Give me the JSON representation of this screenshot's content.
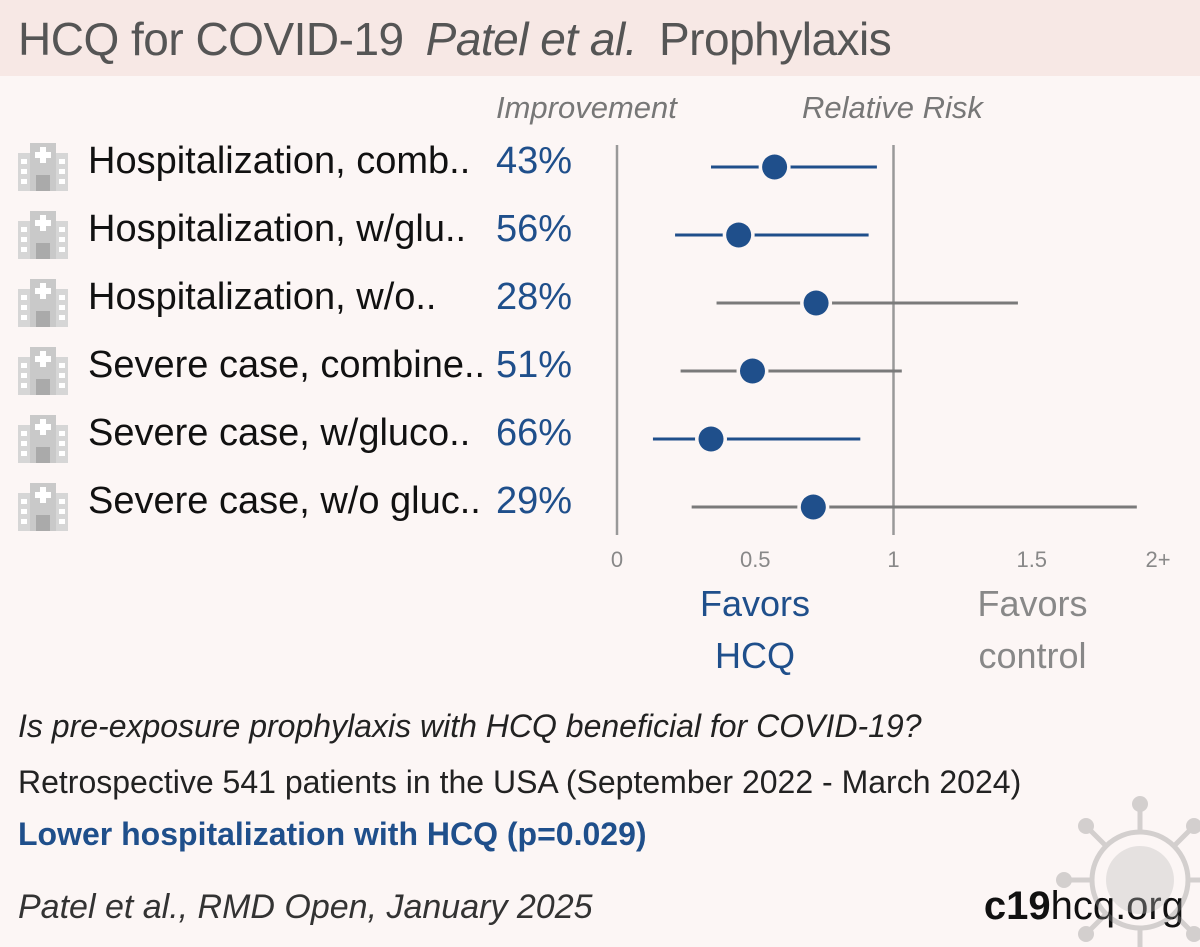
{
  "title": {
    "treatment": "HCQ for COVID-19",
    "author": "Patel et al.",
    "setting": "Prophylaxis"
  },
  "columns": {
    "improvement": "Improvement",
    "relative_risk": "Relative Risk"
  },
  "rows": [
    {
      "label": "Hospitalization, comb..",
      "improvement": "43%",
      "icon": "hospital-icon"
    },
    {
      "label": "Hospitalization, w/glu..",
      "improvement": "56%",
      "icon": "hospital-icon"
    },
    {
      "label": "Hospitalization, w/o..",
      "improvement": "28%",
      "icon": "hospital-icon"
    },
    {
      "label": "Severe case, combine..",
      "improvement": "51%",
      "icon": "hospital-icon"
    },
    {
      "label": "Severe case, w/gluco..",
      "improvement": "66%",
      "icon": "hospital-icon"
    },
    {
      "label": "Severe case, w/o gluc..",
      "improvement": "29%",
      "icon": "hospital-icon"
    }
  ],
  "chart_data": {
    "type": "forest",
    "xlabel": "Relative Risk",
    "xlim": [
      0,
      2
    ],
    "x_ticks": [
      "0",
      "0.5",
      "1",
      "1.5",
      "2+"
    ],
    "reference_line": 1,
    "points": [
      {
        "rr": 0.57,
        "ci": [
          0.34,
          0.94
        ],
        "significant": true
      },
      {
        "rr": 0.44,
        "ci": [
          0.21,
          0.91
        ],
        "significant": true
      },
      {
        "rr": 0.72,
        "ci": [
          0.36,
          1.45
        ],
        "significant": false
      },
      {
        "rr": 0.49,
        "ci": [
          0.23,
          1.03
        ],
        "significant": false
      },
      {
        "rr": 0.34,
        "ci": [
          0.13,
          0.88
        ],
        "significant": true
      },
      {
        "rr": 0.71,
        "ci": [
          0.27,
          1.88
        ],
        "significant": false
      }
    ],
    "colors": {
      "significant": "#1f4f8b",
      "not_significant": "#7a7a7a",
      "point": "#1f4f8b",
      "axis": "#999999"
    }
  },
  "favors": {
    "left": [
      "Favors",
      "HCQ"
    ],
    "right": [
      "Favors",
      "control"
    ]
  },
  "question": "Is pre-exposure prophylaxis with HCQ beneficial for COVID-19?",
  "details": "Retrospective 541 patients in the USA (September 2022 - March 2024)",
  "conclusion": "Lower hospitalization with HCQ (p=0.029)",
  "citation": "Patel et al., RMD Open, January 2025",
  "site": {
    "bold": "c19",
    "rest": "hcq.org"
  },
  "decor_icon": "virus-icon"
}
